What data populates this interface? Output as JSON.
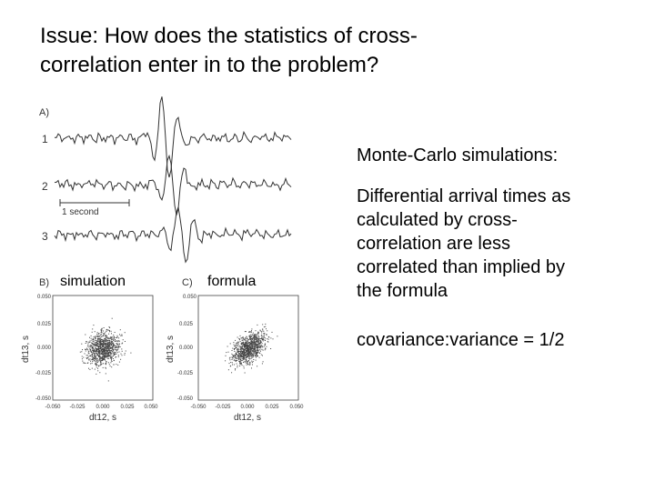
{
  "slide": {
    "title_line1": "Issue: How does the statistics of cross-",
    "title_line2": "correlation enter in to the problem?",
    "mc_heading": "Monte-Carlo simulations:",
    "diff_line1": "Differential arrival times as",
    "diff_line2": "calculated by cross-",
    "diff_line3": "correlation are less",
    "diff_line4": "correlated than implied by",
    "diff_line5": "the formula",
    "covariance": "covariance:variance = 1/2"
  },
  "figure": {
    "panel_a": "A)",
    "trace_labels": [
      "1",
      "2",
      "3"
    ],
    "scale_label": "1 second",
    "panel_b": "B)",
    "panel_b_overlay": "simulation",
    "panel_c": "C)",
    "panel_c_overlay": "formula",
    "y_label": "dt13, s",
    "x_label": "dt12, s",
    "y_ticks": [
      "0.050",
      "0.025",
      "0.000",
      "-0.025",
      "-0.050"
    ],
    "x_ticks": [
      "-0.050",
      "-0.025",
      "0.000",
      "0.025",
      "0.050"
    ]
  }
}
